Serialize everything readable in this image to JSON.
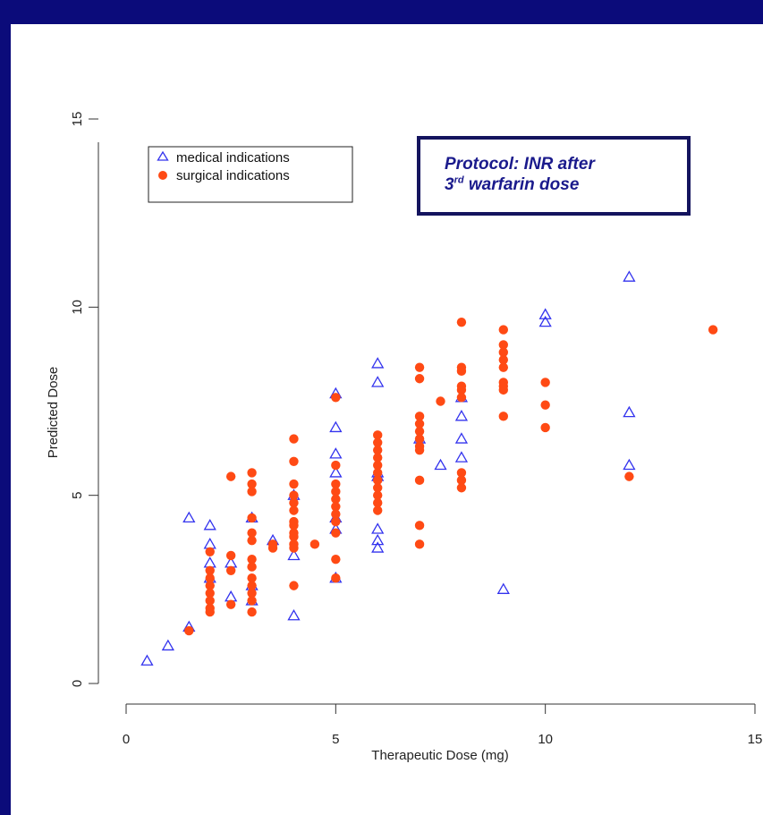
{
  "protocol_box": {
    "line1": "Protocol:  INR after",
    "line2_num": "3",
    "line2_sup": "rd",
    "line2_rest": " warfarin dose"
  },
  "chart_data": {
    "type": "scatter",
    "xlabel": "Therapeutic Dose (mg)",
    "ylabel": "Predicted Dose",
    "xlim": [
      0,
      15
    ],
    "ylim": [
      0,
      15
    ],
    "x_ticks": [
      "0",
      "5",
      "10",
      "15"
    ],
    "y_ticks": [
      "0",
      "5",
      "10",
      "15"
    ],
    "legend_position": "top-left",
    "series": [
      {
        "name": "medical indications",
        "marker": "open-triangle",
        "color": "#3333ee",
        "points": [
          [
            0.5,
            0.6
          ],
          [
            1,
            1.0
          ],
          [
            1.5,
            1.5
          ],
          [
            1.5,
            4.4
          ],
          [
            2,
            4.2
          ],
          [
            2,
            3.7
          ],
          [
            2,
            3.2
          ],
          [
            2,
            2.8
          ],
          [
            2.5,
            3.2
          ],
          [
            2.5,
            2.3
          ],
          [
            3,
            4.4
          ],
          [
            3,
            2.2
          ],
          [
            3,
            2.6
          ],
          [
            3.5,
            3.8
          ],
          [
            4,
            5.0
          ],
          [
            4,
            3.4
          ],
          [
            4,
            1.8
          ],
          [
            5,
            7.7
          ],
          [
            5,
            6.8
          ],
          [
            5,
            6.1
          ],
          [
            5,
            5.6
          ],
          [
            5,
            4.4
          ],
          [
            5,
            4.1
          ],
          [
            5,
            2.8
          ],
          [
            6,
            8.5
          ],
          [
            6,
            8.0
          ],
          [
            6,
            5.6
          ],
          [
            6,
            5.5
          ],
          [
            6,
            4.1
          ],
          [
            6,
            3.8
          ],
          [
            6,
            3.6
          ],
          [
            7,
            6.5
          ],
          [
            7.5,
            5.8
          ],
          [
            8,
            7.6
          ],
          [
            8,
            7.1
          ],
          [
            8,
            6.5
          ],
          [
            8,
            6.0
          ],
          [
            9,
            2.5
          ],
          [
            10,
            9.8
          ],
          [
            10,
            9.6
          ],
          [
            12,
            10.8
          ],
          [
            12,
            7.2
          ],
          [
            12,
            5.8
          ]
        ]
      },
      {
        "name": "surgical indications",
        "marker": "filled-circle",
        "color": "#ff4a14",
        "points": [
          [
            1.5,
            1.4
          ],
          [
            2,
            3.5
          ],
          [
            2,
            3.0
          ],
          [
            2,
            2.8
          ],
          [
            2,
            2.6
          ],
          [
            2,
            2.4
          ],
          [
            2,
            2.2
          ],
          [
            2,
            2.0
          ],
          [
            2,
            1.9
          ],
          [
            2.5,
            5.5
          ],
          [
            2.5,
            3.4
          ],
          [
            2.5,
            3.0
          ],
          [
            2.5,
            2.1
          ],
          [
            3,
            5.6
          ],
          [
            3,
            5.3
          ],
          [
            3,
            5.1
          ],
          [
            3,
            4.4
          ],
          [
            3,
            4.0
          ],
          [
            3,
            3.8
          ],
          [
            3,
            3.3
          ],
          [
            3,
            3.1
          ],
          [
            3,
            2.8
          ],
          [
            3,
            2.6
          ],
          [
            3,
            2.4
          ],
          [
            3,
            2.2
          ],
          [
            3,
            1.9
          ],
          [
            3.5,
            3.6
          ],
          [
            3.5,
            3.7
          ],
          [
            4,
            6.5
          ],
          [
            4,
            5.9
          ],
          [
            4,
            5.3
          ],
          [
            4,
            5.0
          ],
          [
            4,
            4.8
          ],
          [
            4,
            4.6
          ],
          [
            4,
            4.3
          ],
          [
            4,
            4.2
          ],
          [
            4,
            4.0
          ],
          [
            4,
            3.9
          ],
          [
            4,
            3.7
          ],
          [
            4,
            3.6
          ],
          [
            4,
            2.6
          ],
          [
            4.5,
            3.7
          ],
          [
            5,
            7.6
          ],
          [
            5,
            5.8
          ],
          [
            5,
            5.3
          ],
          [
            5,
            5.1
          ],
          [
            5,
            4.9
          ],
          [
            5,
            4.7
          ],
          [
            5,
            4.5
          ],
          [
            5,
            4.3
          ],
          [
            5,
            4.0
          ],
          [
            5,
            3.3
          ],
          [
            5,
            2.8
          ],
          [
            6,
            6.6
          ],
          [
            6,
            6.4
          ],
          [
            6,
            6.2
          ],
          [
            6,
            6.0
          ],
          [
            6,
            5.8
          ],
          [
            6,
            5.6
          ],
          [
            6,
            5.4
          ],
          [
            6,
            5.2
          ],
          [
            6,
            5.0
          ],
          [
            6,
            4.8
          ],
          [
            6,
            4.6
          ],
          [
            7,
            8.4
          ],
          [
            7,
            8.1
          ],
          [
            7,
            7.1
          ],
          [
            7,
            6.9
          ],
          [
            7,
            6.7
          ],
          [
            7,
            6.5
          ],
          [
            7,
            6.3
          ],
          [
            7,
            6.2
          ],
          [
            7,
            5.4
          ],
          [
            7,
            4.2
          ],
          [
            7,
            3.7
          ],
          [
            7.5,
            7.5
          ],
          [
            8,
            9.6
          ],
          [
            8,
            8.4
          ],
          [
            8,
            8.3
          ],
          [
            8,
            7.9
          ],
          [
            8,
            7.8
          ],
          [
            8,
            7.6
          ],
          [
            8,
            5.6
          ],
          [
            8,
            5.4
          ],
          [
            8,
            5.2
          ],
          [
            9,
            9.4
          ],
          [
            9,
            9.0
          ],
          [
            9,
            8.8
          ],
          [
            9,
            8.6
          ],
          [
            9,
            8.4
          ],
          [
            9,
            8.0
          ],
          [
            9,
            7.9
          ],
          [
            9,
            7.8
          ],
          [
            9,
            7.1
          ],
          [
            10,
            8.0
          ],
          [
            10,
            7.4
          ],
          [
            10,
            6.8
          ],
          [
            12,
            5.5
          ],
          [
            14,
            9.4
          ]
        ]
      }
    ]
  }
}
